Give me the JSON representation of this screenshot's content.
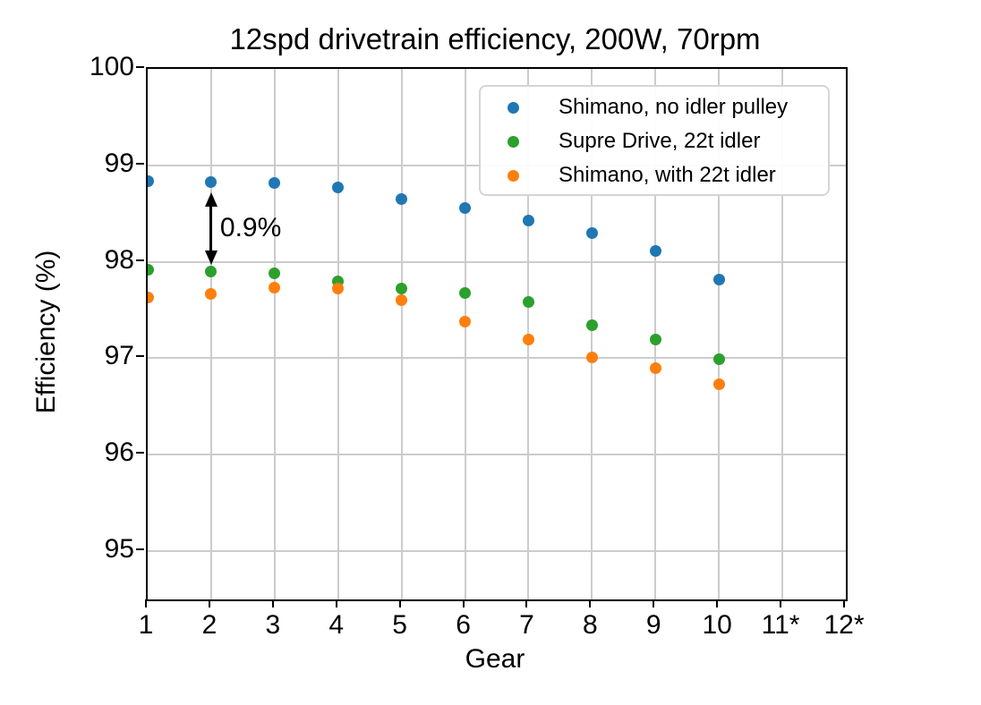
{
  "chart_data": {
    "type": "scatter",
    "title": "12spd drivetrain efficiency, 200W, 70rpm",
    "xlabel": "Gear",
    "ylabel": "Efficiency (%)",
    "xlim": [
      1,
      12
    ],
    "ylim": [
      94.5,
      100
    ],
    "x_ticks": [
      1,
      2,
      3,
      4,
      5,
      6,
      7,
      8,
      9,
      10,
      11,
      12
    ],
    "x_ticklabels": [
      "1",
      "2",
      "3",
      "4",
      "5",
      "6",
      "7",
      "8",
      "9",
      "10",
      "11*",
      "12*"
    ],
    "y_ticks": [
      100,
      99,
      98,
      97,
      96,
      95
    ],
    "y_ticklabels": [
      "100",
      "99",
      "98",
      "97",
      "96",
      "95"
    ],
    "grid": true,
    "legend_position": "upper right",
    "x": [
      1,
      2,
      3,
      4,
      5,
      6,
      7,
      8,
      9,
      10
    ],
    "series": [
      {
        "name": "Shimano, no idler pulley",
        "color": "#1f77b4",
        "values": [
          98.84,
          98.83,
          98.82,
          98.77,
          98.65,
          98.56,
          98.43,
          98.3,
          98.11,
          97.82
        ]
      },
      {
        "name": "Supre Drive, 22t idler",
        "color": "#2ca02c",
        "values": [
          97.92,
          97.9,
          97.88,
          97.8,
          97.72,
          97.68,
          97.58,
          97.34,
          97.19,
          96.99
        ]
      },
      {
        "name": "Shimano, with 22t idler",
        "color": "#ff7f0e",
        "values": [
          97.63,
          97.67,
          97.73,
          97.72,
          97.6,
          97.38,
          97.19,
          97.01,
          96.9,
          96.73
        ]
      }
    ],
    "annotation": {
      "label": "0.9%",
      "x": 2,
      "arrow_from_y": 98.72,
      "arrow_to_y": 97.97
    }
  }
}
